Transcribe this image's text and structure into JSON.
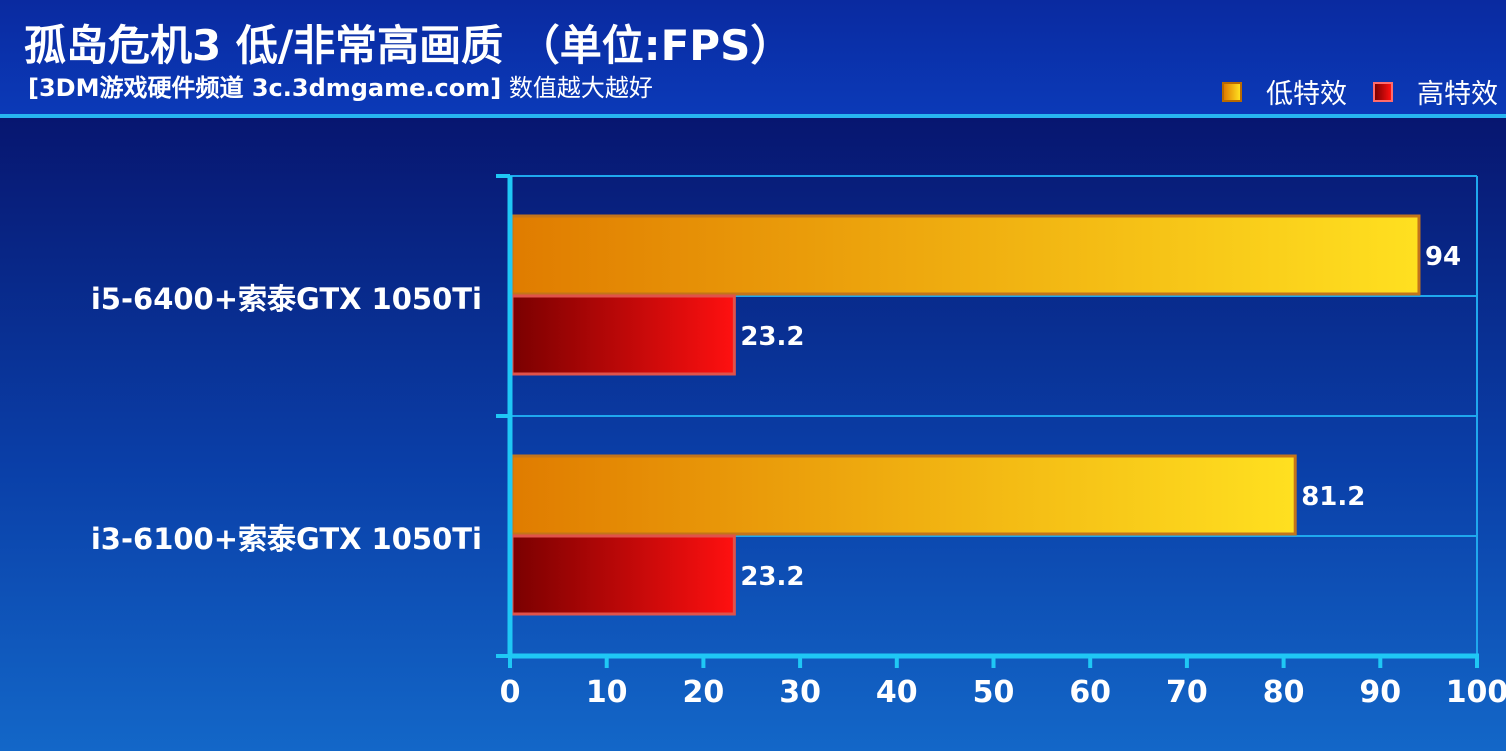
{
  "header": {
    "title": "孤岛危机3 低/非常高画质 （单位:FPS）",
    "subtitle_bold": "[3DM游戏硬件频道 3c.3dmgame.com]",
    "subtitle_rest": " 数值越大越好"
  },
  "legend": {
    "low": "低特效",
    "high": "高特效"
  },
  "colors": {
    "low_start": "#e07c00",
    "low_end": "#ffe020",
    "high_start": "#7a0000",
    "high_end": "#ff1010",
    "axis": "#1fc8f5",
    "grid": "#1fa8ee"
  },
  "chart_data": {
    "type": "bar",
    "orientation": "horizontal",
    "title": "孤岛危机3 低/非常高画质 （单位:FPS）",
    "categories": [
      "i5-6400+索泰GTX 1050Ti",
      "i3-6100+索泰GTX 1050Ti"
    ],
    "series": [
      {
        "name": "低特效",
        "values": [
          94,
          81.2
        ]
      },
      {
        "name": "高特效",
        "values": [
          23.2,
          23.2
        ]
      }
    ],
    "value_labels": [
      [
        "94",
        "81.2"
      ],
      [
        "23.2",
        "23.2"
      ]
    ],
    "xlim": [
      0,
      100
    ],
    "xticks": [
      0,
      10,
      20,
      30,
      40,
      50,
      60,
      70,
      80,
      90,
      100
    ],
    "grid": true,
    "legend_position": "top-right"
  }
}
